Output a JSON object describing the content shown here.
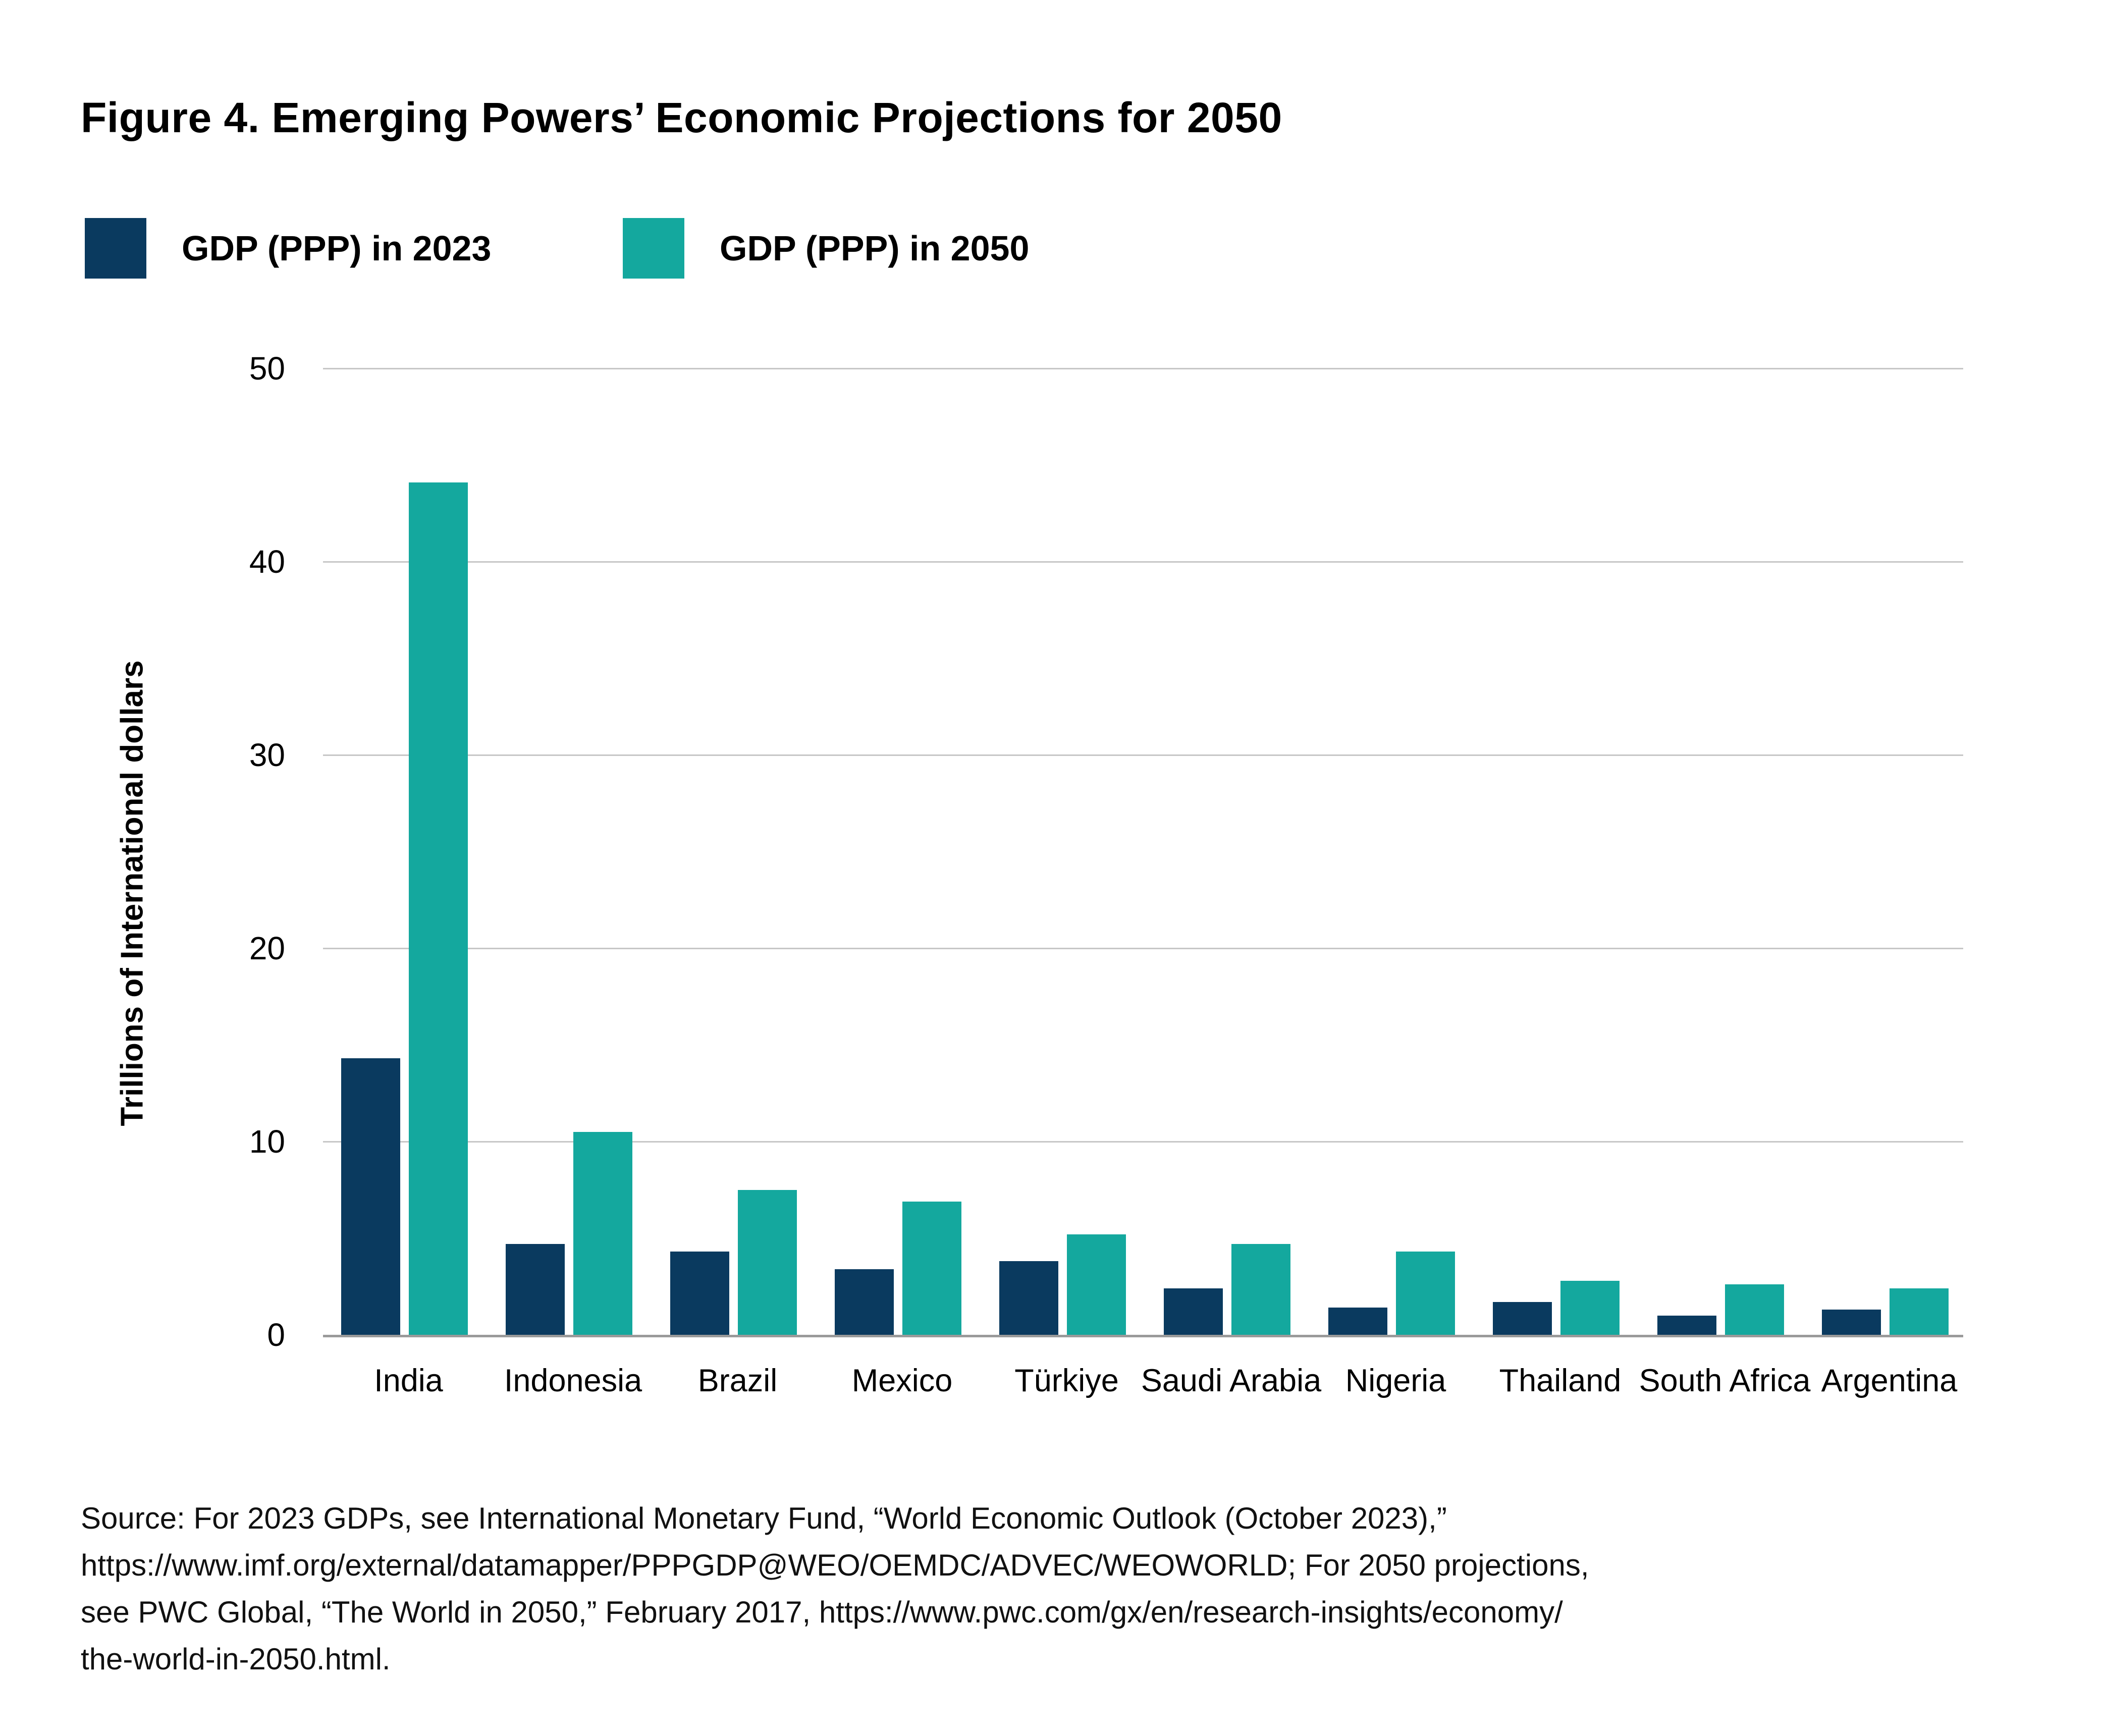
{
  "title": "Figure 4. Emerging Powers’ Economic Projections for 2050",
  "legend": {
    "items": [
      {
        "label": "GDP (PPP) in 2023",
        "color": "#0a3a5f"
      },
      {
        "label": "GDP (PPP) in 2050",
        "color": "#14a89e"
      }
    ]
  },
  "chart_data": {
    "type": "bar",
    "title": "Figure 4. Emerging Powers' Economic Projections for 2050",
    "categories": [
      "India",
      "Indonesia",
      "Brazil",
      "Mexico",
      "Türkiye",
      "Saudi Arabia",
      "Nigeria",
      "Thailand",
      "South Africa",
      "Argentina"
    ],
    "series": [
      {
        "name": "GDP (PPP) in 2023",
        "color": "#0a3a5f",
        "values": [
          14.3,
          4.7,
          4.3,
          3.4,
          3.8,
          2.4,
          1.4,
          1.7,
          1.0,
          1.3
        ]
      },
      {
        "name": "GDP (PPP) in 2050",
        "color": "#14a89e",
        "values": [
          44.1,
          10.5,
          7.5,
          6.9,
          5.2,
          4.7,
          4.3,
          2.8,
          2.6,
          2.4
        ]
      }
    ],
    "xlabel": "",
    "ylabel": "Trillions of International dollars",
    "yticks": [
      0,
      10,
      20,
      30,
      40,
      50
    ],
    "ylim": [
      0,
      50
    ],
    "grid": true,
    "gridline_color": "#c7c7c7",
    "axis_line_color": "#9a9a9a",
    "legend_position": "top-left"
  },
  "source": "Source: For 2023 GDPs, see International Monetary Fund, “World Economic Outlook (October 2023),”\nhttps://www.imf.org/external/datamapper/PPPGDP@WEO/OEMDC/ADVEC/WEOWORLD; For 2050 projections,\nsee PWC Global, “The World in 2050,” February 2017, https://www.pwc.com/gx/en/research-insights/economy/\nthe-world-in-2050.html."
}
